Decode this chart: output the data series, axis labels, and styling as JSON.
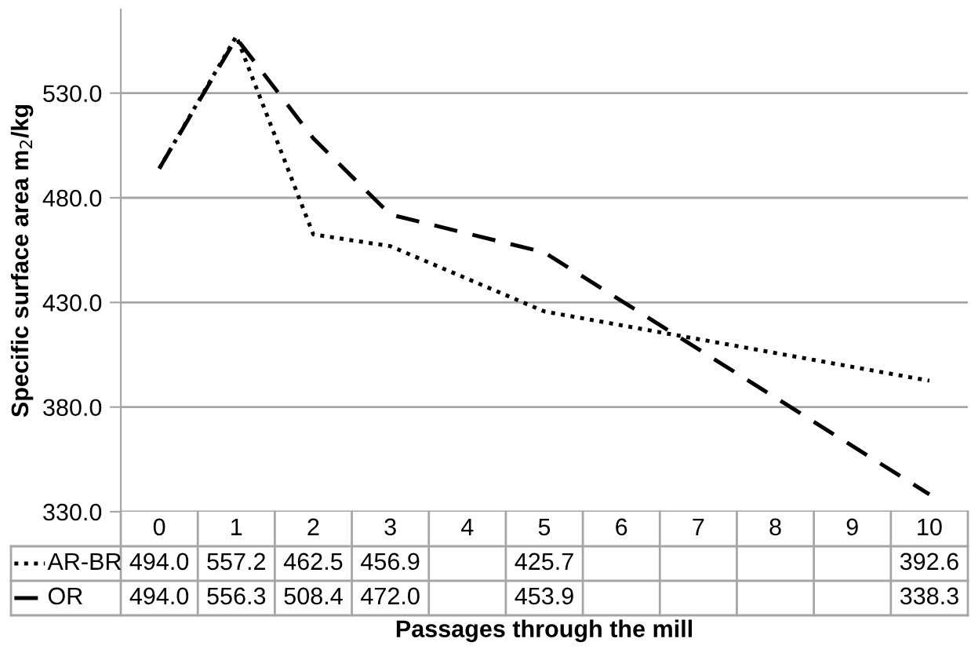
{
  "chart_data": {
    "type": "line",
    "ylabel": "Specific surface area m$_{2}$/kg",
    "xlabel": "Passages through the mill",
    "categories": [
      "0",
      "1",
      "2",
      "3",
      "4",
      "5",
      "6",
      "7",
      "8",
      "9",
      "10"
    ],
    "series": [
      {
        "name": "AR-BR",
        "color": "#000000",
        "line_style": "dotted",
        "values": [
          494.0,
          557.2,
          462.5,
          456.9,
          null,
          425.7,
          null,
          null,
          null,
          null,
          392.6
        ],
        "value_labels": [
          "494.0",
          "557.2",
          "462.5",
          "456.9",
          null,
          "425.7",
          null,
          null,
          null,
          null,
          "392.6"
        ]
      },
      {
        "name": "OR",
        "color": "#000000",
        "line_style": "dashed",
        "values": [
          494.0,
          556.3,
          508.4,
          472.0,
          null,
          453.9,
          null,
          null,
          null,
          null,
          338.3
        ],
        "value_labels": [
          "494.0",
          "556.3",
          "508.4",
          "472.0",
          null,
          "453.9",
          null,
          null,
          null,
          null,
          "338.3"
        ]
      }
    ],
    "ylim": [
      330,
      570
    ],
    "yticks": [
      {
        "value": 330,
        "label": "330.0"
      },
      {
        "value": 380,
        "label": "380.0"
      },
      {
        "value": 430,
        "label": "430.0"
      },
      {
        "value": 480,
        "label": "480.0"
      },
      {
        "value": 530,
        "label": "530.0"
      }
    ],
    "grid": "y",
    "legend": "bottom"
  }
}
